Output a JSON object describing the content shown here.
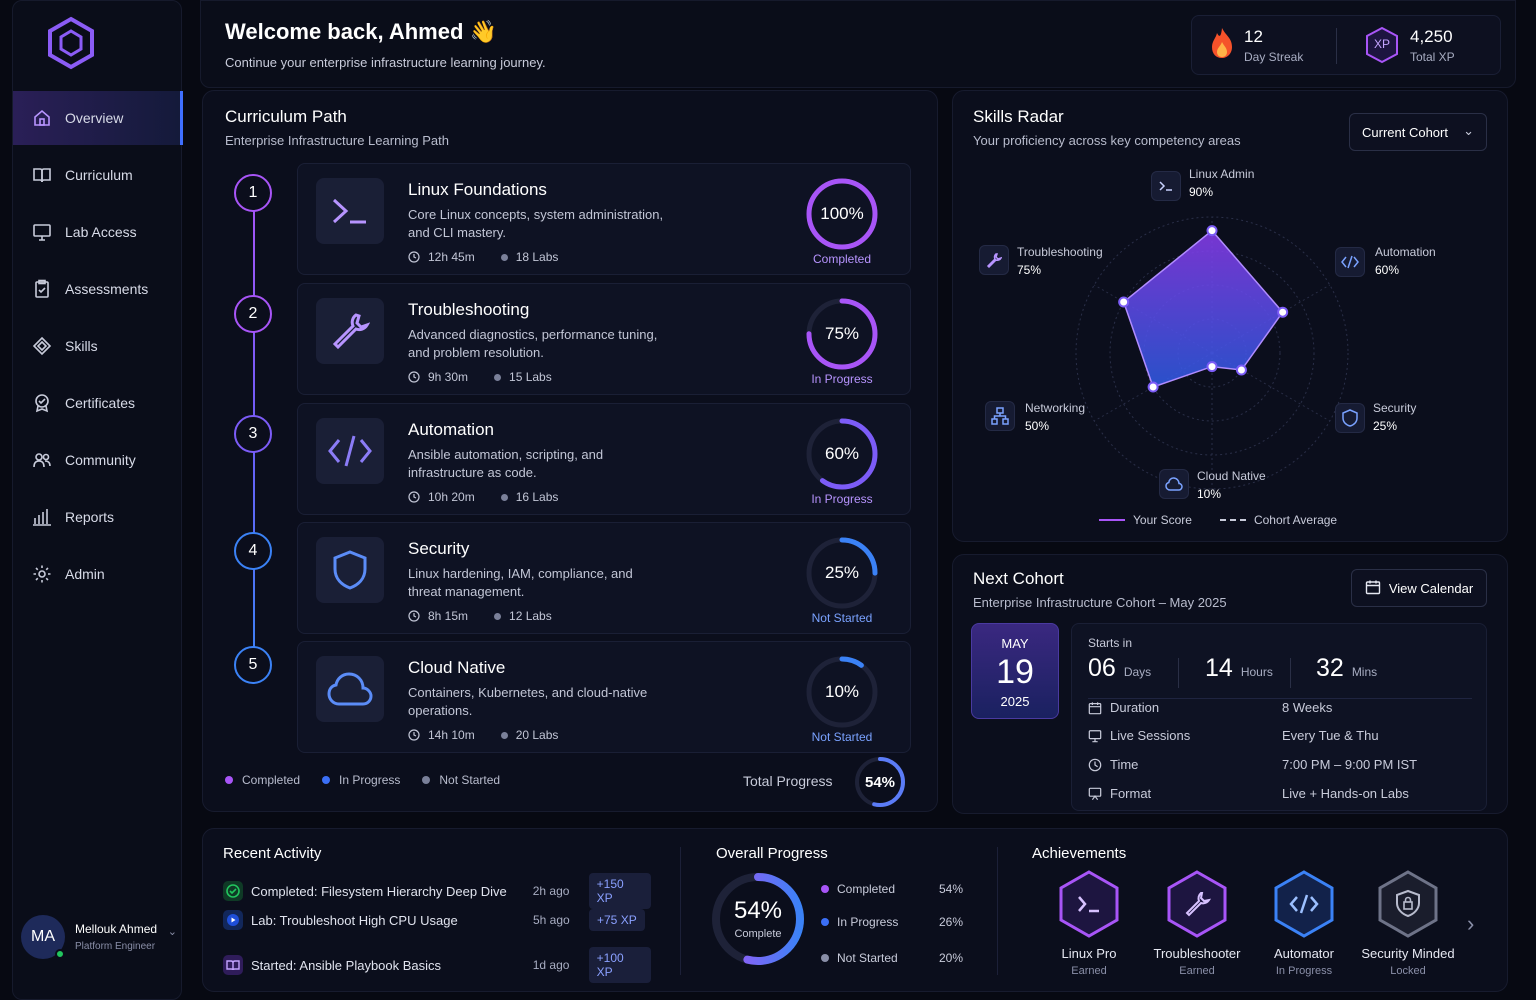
{
  "sidebar": {
    "items": [
      {
        "label": "Overview",
        "icon": "home-icon"
      },
      {
        "label": "Curriculum",
        "icon": "book-icon"
      },
      {
        "label": "Lab Access",
        "icon": "monitor-icon"
      },
      {
        "label": "Assessments",
        "icon": "clipboard-icon"
      },
      {
        "label": "Skills",
        "icon": "diamond-icon"
      },
      {
        "label": "Certificates",
        "icon": "badge-icon"
      },
      {
        "label": "Community",
        "icon": "users-icon"
      },
      {
        "label": "Reports",
        "icon": "bar-chart-icon"
      },
      {
        "label": "Admin",
        "icon": "gear-icon"
      }
    ],
    "user": {
      "initials": "MA",
      "name": "Mellouk Ahmed",
      "role": "Platform Engineer"
    }
  },
  "header": {
    "welcome": "Welcome back, Ahmed",
    "subtitle": "Continue your enterprise infrastructure learning journey.",
    "streak_value": "12",
    "streak_label": "Day Streak",
    "xp_value": "4,250",
    "xp_label": "Total XP",
    "xp_badge": "XP"
  },
  "curriculum": {
    "title": "Curriculum Path",
    "subtitle": "Enterprise Infrastructure Learning Path",
    "modules": [
      {
        "step": "1",
        "title": "Linux Foundations",
        "desc": "Core Linux concepts, system administration, and CLI mastery.",
        "time": "12h 45m",
        "labs": "18 Labs",
        "percent_label": "100%",
        "percent": 100,
        "status": "Completed",
        "color": "#a855f7"
      },
      {
        "step": "2",
        "title": "Troubleshooting",
        "desc": "Advanced diagnostics, performance tuning, and problem resolution.",
        "time": "9h 30m",
        "labs": "15 Labs",
        "percent_label": "75%",
        "percent": 75,
        "status": "In Progress",
        "color": "#a855f7"
      },
      {
        "step": "3",
        "title": "Automation",
        "desc": "Ansible automation, scripting, and infrastructure as code.",
        "time": "10h 20m",
        "labs": "16 Labs",
        "percent_label": "60%",
        "percent": 60,
        "status": "In Progress",
        "color": "#7c5cf7"
      },
      {
        "step": "4",
        "title": "Security",
        "desc": "Linux hardening, IAM, compliance, and threat management.",
        "time": "8h 15m",
        "labs": "12 Labs",
        "percent_label": "25%",
        "percent": 25,
        "status": "Not Started",
        "color": "#3b82f6"
      },
      {
        "step": "5",
        "title": "Cloud Native",
        "desc": "Containers, Kubernetes, and cloud-native operations.",
        "time": "14h 10m",
        "labs": "20 Labs",
        "percent_label": "10%",
        "percent": 10,
        "status": "Not Started",
        "color": "#3b82f6"
      }
    ],
    "legend": [
      "Completed",
      "In Progress",
      "Not Started"
    ],
    "total_label": "Total Progress",
    "total_value": "54%",
    "total_percent": 54
  },
  "radar": {
    "title": "Skills Radar",
    "subtitle": "Your proficiency across key competency areas",
    "dropdown": "Current Cohort",
    "skills": [
      {
        "name": "Linux Admin",
        "value_label": "90%",
        "value": 90
      },
      {
        "name": "Automation",
        "value_label": "60%",
        "value": 60
      },
      {
        "name": "Security",
        "value_label": "25%",
        "value": 25
      },
      {
        "name": "Cloud Native",
        "value_label": "10%",
        "value": 10
      },
      {
        "name": "Networking",
        "value_label": "50%",
        "value": 50
      },
      {
        "name": "Troubleshooting",
        "value_label": "75%",
        "value": 75
      }
    ],
    "legend_score": "Your Score",
    "legend_avg": "Cohort Average"
  },
  "cohort": {
    "title": "Next Cohort",
    "subtitle": "Enterprise Infrastructure Cohort – May 2025",
    "button": "View Calendar",
    "month": "MAY",
    "day": "19",
    "year": "2025",
    "starts_in": "Starts in",
    "days": "06",
    "days_label": "Days",
    "hours": "14",
    "hours_label": "Hours",
    "mins": "32",
    "mins_label": "Mins",
    "details": [
      {
        "key": "Duration",
        "value": "8 Weeks",
        "icon": "calendar-icon"
      },
      {
        "key": "Live Sessions",
        "value": "Every Tue & Thu",
        "icon": "monitor-icon"
      },
      {
        "key": "Time",
        "value": "7:00 PM – 9:00 PM IST",
        "icon": "clock-icon"
      },
      {
        "key": "Format",
        "value": "Live + Hands-on Labs",
        "icon": "presentation-icon"
      }
    ]
  },
  "activity": {
    "title": "Recent Activity",
    "items": [
      {
        "text": "Completed: Filesystem Hierarchy Deep Dive",
        "ago": "2h ago",
        "xp": "+150 XP",
        "color": "#22c55e"
      },
      {
        "text": "Lab: Troubleshoot High CPU Usage",
        "ago": "5h ago",
        "xp": "+75 XP",
        "color": "#3b82f6"
      },
      {
        "text": "Started: Ansible Playbook Basics",
        "ago": "1d ago",
        "xp": "+100 XP",
        "color": "#a855f7"
      }
    ]
  },
  "overall": {
    "title": "Overall Progress",
    "value": "54%",
    "caption": "Complete",
    "percent": 54,
    "rows": [
      {
        "label": "Completed",
        "value": "54%",
        "color": "#a855f7"
      },
      {
        "label": "In Progress",
        "value": "26%",
        "color": "#3b82f6"
      },
      {
        "label": "Not Started",
        "value": "20%",
        "color": "#8a8fa8"
      }
    ]
  },
  "achievements": {
    "title": "Achievements",
    "items": [
      {
        "name": "Linux Pro",
        "status": "Earned",
        "color": "#a855f7"
      },
      {
        "name": "Troubleshooter",
        "status": "Earned",
        "color": "#a855f7"
      },
      {
        "name": "Automator",
        "status": "In Progress",
        "color": "#3b82f6"
      },
      {
        "name": "Security Minded",
        "status": "Locked",
        "color": "#8a8fa8"
      }
    ]
  }
}
